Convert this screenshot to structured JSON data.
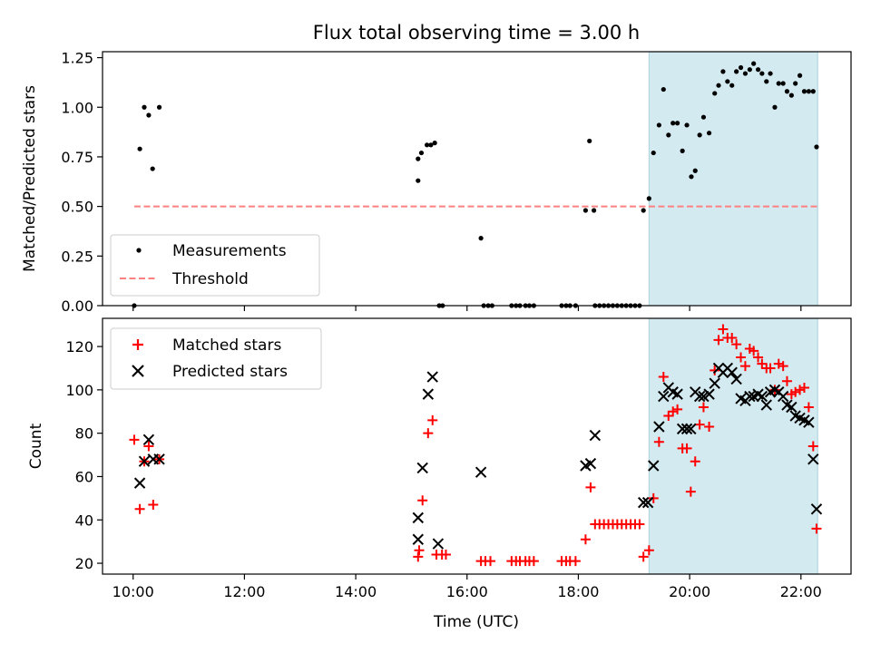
{
  "chart_data": {
    "title": "Flux total observing time = 3.00 h",
    "xlabel": "Time (UTC)",
    "x_unit": "hours UTC",
    "xlim": [
      9.45,
      22.9
    ],
    "x_ticks": [
      10,
      12,
      14,
      16,
      18,
      20,
      22
    ],
    "x_tick_labels": [
      "10:00",
      "12:00",
      "14:00",
      "16:00",
      "18:00",
      "20:00",
      "22:00"
    ],
    "shaded_region": {
      "x_start": 19.27,
      "x_end": 22.3,
      "color": "#d3eaf0"
    },
    "panels": [
      {
        "type": "scatter",
        "ylabel": "Matched/Predicted stars",
        "ylim": [
          0.0,
          1.28
        ],
        "y_ticks": [
          "0.00",
          "0.25",
          "0.50",
          "0.75",
          "1.00",
          "1.25"
        ],
        "legend_position": "lower-left",
        "series": [
          {
            "name": "Measurements",
            "marker": "dot",
            "color": "#000000",
            "points": [
              [
                10.02,
                0.0
              ],
              [
                10.12,
                0.79
              ],
              [
                10.2,
                1.0
              ],
              [
                10.28,
                0.96
              ],
              [
                10.35,
                0.69
              ],
              [
                10.47,
                1.0
              ],
              [
                15.12,
                0.63
              ],
              [
                15.12,
                0.74
              ],
              [
                15.18,
                0.77
              ],
              [
                15.28,
                0.81
              ],
              [
                15.35,
                0.81
              ],
              [
                15.42,
                0.82
              ],
              [
                15.5,
                0.0
              ],
              [
                15.56,
                0.0
              ],
              [
                16.25,
                0.34
              ],
              [
                16.3,
                0.0
              ],
              [
                16.38,
                0.0
              ],
              [
                16.45,
                0.0
              ],
              [
                16.8,
                0.0
              ],
              [
                16.88,
                0.0
              ],
              [
                16.95,
                0.0
              ],
              [
                17.05,
                0.0
              ],
              [
                17.12,
                0.0
              ],
              [
                17.2,
                0.0
              ],
              [
                17.7,
                0.0
              ],
              [
                17.78,
                0.0
              ],
              [
                17.85,
                0.0
              ],
              [
                17.95,
                0.0
              ],
              [
                18.13,
                0.48
              ],
              [
                18.2,
                0.83
              ],
              [
                18.28,
                0.48
              ],
              [
                18.3,
                0.0
              ],
              [
                18.38,
                0.0
              ],
              [
                18.46,
                0.0
              ],
              [
                18.54,
                0.0
              ],
              [
                18.62,
                0.0
              ],
              [
                18.7,
                0.0
              ],
              [
                18.78,
                0.0
              ],
              [
                18.86,
                0.0
              ],
              [
                18.94,
                0.0
              ],
              [
                19.02,
                0.0
              ],
              [
                19.1,
                0.0
              ],
              [
                19.17,
                0.48
              ],
              [
                19.27,
                0.54
              ],
              [
                19.35,
                0.77
              ],
              [
                19.45,
                0.91
              ],
              [
                19.53,
                1.09
              ],
              [
                19.62,
                0.86
              ],
              [
                19.7,
                0.92
              ],
              [
                19.78,
                0.92
              ],
              [
                19.87,
                0.78
              ],
              [
                19.95,
                0.91
              ],
              [
                20.03,
                0.65
              ],
              [
                20.1,
                0.68
              ],
              [
                20.18,
                0.86
              ],
              [
                20.25,
                0.95
              ],
              [
                20.35,
                0.87
              ],
              [
                20.45,
                1.07
              ],
              [
                20.52,
                1.11
              ],
              [
                20.6,
                1.18
              ],
              [
                20.68,
                1.13
              ],
              [
                20.76,
                1.11
              ],
              [
                20.84,
                1.18
              ],
              [
                20.92,
                1.2
              ],
              [
                21.0,
                1.17
              ],
              [
                21.08,
                1.19
              ],
              [
                21.15,
                1.22
              ],
              [
                21.23,
                1.19
              ],
              [
                21.3,
                1.17
              ],
              [
                21.38,
                1.13
              ],
              [
                21.45,
                1.17
              ],
              [
                21.53,
                1.0
              ],
              [
                21.6,
                1.12
              ],
              [
                21.68,
                1.12
              ],
              [
                21.75,
                1.08
              ],
              [
                21.83,
                1.06
              ],
              [
                21.9,
                1.12
              ],
              [
                21.98,
                1.16
              ],
              [
                22.06,
                1.08
              ],
              [
                22.14,
                1.08
              ],
              [
                22.22,
                1.08
              ],
              [
                22.28,
                0.8
              ]
            ]
          },
          {
            "name": "Threshold",
            "marker": "dashed-line",
            "color": "#ff8080",
            "y": 0.5,
            "x_range": [
              10.02,
              22.3
            ]
          }
        ]
      },
      {
        "type": "scatter",
        "ylabel": "Count",
        "ylim": [
          15,
          133
        ],
        "y_ticks": [
          "20",
          "40",
          "60",
          "80",
          "100",
          "120"
        ],
        "legend_position": "upper-left",
        "series": [
          {
            "name": "Matched stars",
            "marker": "plus",
            "color": "#ff0000",
            "points": [
              [
                10.02,
                77
              ],
              [
                10.12,
                45
              ],
              [
                10.2,
                67
              ],
              [
                10.28,
                74
              ],
              [
                10.36,
                47
              ],
              [
                10.47,
                68
              ],
              [
                15.12,
                23
              ],
              [
                15.14,
                26
              ],
              [
                15.2,
                49
              ],
              [
                15.3,
                80
              ],
              [
                15.38,
                86
              ],
              [
                15.45,
                24
              ],
              [
                15.55,
                24
              ],
              [
                15.62,
                24
              ],
              [
                16.25,
                21
              ],
              [
                16.33,
                21
              ],
              [
                16.42,
                21
              ],
              [
                16.8,
                21
              ],
              [
                16.88,
                21
              ],
              [
                16.95,
                21
              ],
              [
                17.05,
                21
              ],
              [
                17.12,
                21
              ],
              [
                17.2,
                21
              ],
              [
                17.7,
                21
              ],
              [
                17.78,
                21
              ],
              [
                17.85,
                21
              ],
              [
                17.95,
                21
              ],
              [
                18.13,
                31
              ],
              [
                18.22,
                55
              ],
              [
                18.3,
                38
              ],
              [
                18.38,
                38
              ],
              [
                18.46,
                38
              ],
              [
                18.54,
                38
              ],
              [
                18.62,
                38
              ],
              [
                18.7,
                38
              ],
              [
                18.78,
                38
              ],
              [
                18.86,
                38
              ],
              [
                18.94,
                38
              ],
              [
                19.02,
                38
              ],
              [
                19.1,
                38
              ],
              [
                19.17,
                23
              ],
              [
                19.27,
                26
              ],
              [
                19.35,
                50
              ],
              [
                19.45,
                76
              ],
              [
                19.53,
                106
              ],
              [
                19.62,
                88
              ],
              [
                19.7,
                90
              ],
              [
                19.78,
                91
              ],
              [
                19.87,
                73
              ],
              [
                19.95,
                73
              ],
              [
                20.02,
                53
              ],
              [
                20.1,
                67
              ],
              [
                20.18,
                84
              ],
              [
                20.25,
                92
              ],
              [
                20.35,
                83
              ],
              [
                20.45,
                109
              ],
              [
                20.52,
                123
              ],
              [
                20.6,
                128
              ],
              [
                20.68,
                124
              ],
              [
                20.76,
                124
              ],
              [
                20.84,
                121
              ],
              [
                20.92,
                115
              ],
              [
                21.0,
                111
              ],
              [
                21.08,
                119
              ],
              [
                21.15,
                118
              ],
              [
                21.23,
                115
              ],
              [
                21.3,
                112
              ],
              [
                21.38,
                110
              ],
              [
                21.45,
                110
              ],
              [
                21.53,
                100
              ],
              [
                21.6,
                112
              ],
              [
                21.68,
                111
              ],
              [
                21.75,
                104
              ],
              [
                21.83,
                98
              ],
              [
                21.9,
                99
              ],
              [
                21.98,
                100
              ],
              [
                22.06,
                101
              ],
              [
                22.14,
                92
              ],
              [
                22.22,
                74
              ],
              [
                22.28,
                36
              ]
            ]
          },
          {
            "name": "Predicted stars",
            "marker": "x",
            "color": "#000000",
            "points": [
              [
                10.12,
                57
              ],
              [
                10.2,
                67
              ],
              [
                10.28,
                77
              ],
              [
                10.36,
                68
              ],
              [
                10.47,
                68
              ],
              [
                15.12,
                41
              ],
              [
                15.12,
                31
              ],
              [
                15.2,
                64
              ],
              [
                15.3,
                98
              ],
              [
                15.38,
                106
              ],
              [
                15.48,
                29
              ],
              [
                16.25,
                62
              ],
              [
                18.13,
                65
              ],
              [
                18.22,
                66
              ],
              [
                18.3,
                79
              ],
              [
                19.17,
                48
              ],
              [
                19.25,
                48
              ],
              [
                19.35,
                65
              ],
              [
                19.45,
                83
              ],
              [
                19.53,
                97
              ],
              [
                19.62,
                101
              ],
              [
                19.7,
                99
              ],
              [
                19.78,
                98
              ],
              [
                19.87,
                82
              ],
              [
                19.95,
                82
              ],
              [
                20.02,
                82
              ],
              [
                20.1,
                99
              ],
              [
                20.18,
                97
              ],
              [
                20.25,
                97
              ],
              [
                20.35,
                98
              ],
              [
                20.45,
                103
              ],
              [
                20.52,
                110
              ],
              [
                20.6,
                108
              ],
              [
                20.68,
                110
              ],
              [
                20.76,
                108
              ],
              [
                20.84,
                105
              ],
              [
                20.92,
                96
              ],
              [
                21.0,
                95
              ],
              [
                21.08,
                97
              ],
              [
                21.15,
                97
              ],
              [
                21.23,
                98
              ],
              [
                21.3,
                97
              ],
              [
                21.38,
                93
              ],
              [
                21.45,
                99
              ],
              [
                21.53,
                100
              ],
              [
                21.6,
                99
              ],
              [
                21.68,
                97
              ],
              [
                21.75,
                93
              ],
              [
                21.83,
                92
              ],
              [
                21.9,
                88
              ],
              [
                21.98,
                87
              ],
              [
                22.06,
                86
              ],
              [
                22.14,
                85
              ],
              [
                22.22,
                68
              ],
              [
                22.28,
                45
              ]
            ]
          }
        ]
      }
    ]
  }
}
